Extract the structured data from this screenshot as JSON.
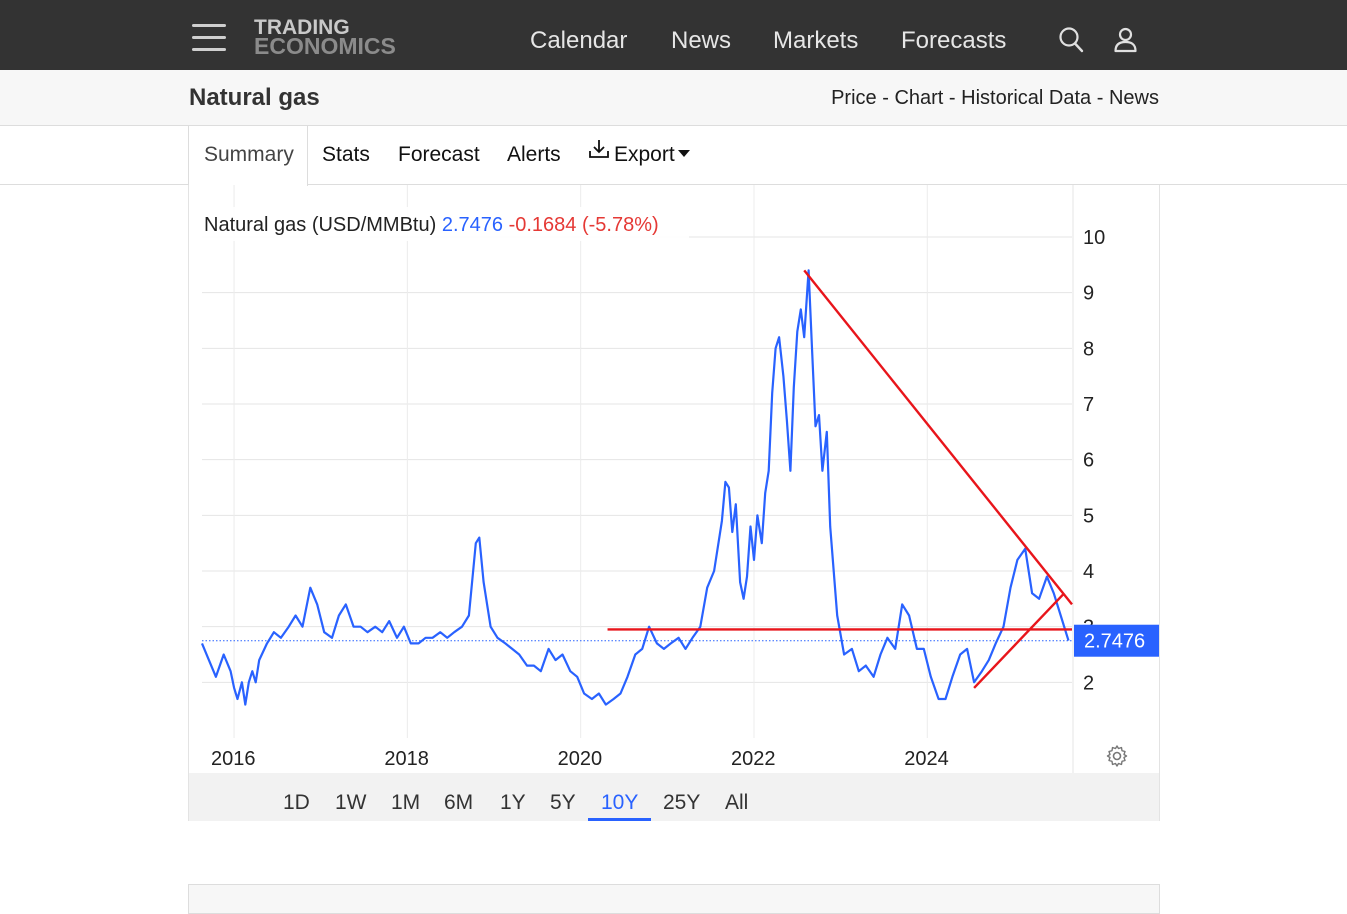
{
  "header": {
    "logo_line1": "TRADING",
    "logo_line2": "ECONOMICS",
    "nav": [
      "Calendar",
      "News",
      "Markets",
      "Forecasts"
    ],
    "icons": [
      "menu-icon",
      "search-icon",
      "user-icon"
    ]
  },
  "subheader": {
    "title": "Natural gas",
    "links": [
      "Price",
      "Chart",
      "Historical Data",
      "News"
    ],
    "separator": "-"
  },
  "tabs": {
    "items": [
      "Summary",
      "Stats",
      "Forecast",
      "Alerts",
      "Export"
    ],
    "active": "Summary",
    "export_icon": "download-icon"
  },
  "chart_data": {
    "type": "line",
    "title": "Natural gas (USD/MMBtu)",
    "last_value": "2.7476",
    "change": "-0.1684",
    "change_pct": "(-5.78%)",
    "price_tag": "2.7476",
    "xlabel": "",
    "ylabel": "",
    "x_ticks": [
      "2016",
      "2018",
      "2020",
      "2022",
      "2024"
    ],
    "y_ticks": [
      "2",
      "3",
      "4",
      "5",
      "6",
      "7",
      "8",
      "9",
      "10"
    ],
    "ylim": [
      1,
      10
    ],
    "grid": true,
    "y_axis_side": "right",
    "colors": {
      "line": "#2962ff",
      "trend": "#e8151b",
      "negative": "#e53935",
      "tag_bg": "#2962ff"
    },
    "series": [
      {
        "x": [
          2015.67,
          2015.75,
          2015.83,
          2015.92,
          2016.0,
          2016.04,
          2016.08,
          2016.13,
          2016.17,
          2016.21,
          2016.25,
          2016.29,
          2016.33,
          2016.42,
          2016.5,
          2016.58,
          2016.67,
          2016.75,
          2016.83,
          2016.92,
          2017.0,
          2017.08,
          2017.17,
          2017.25,
          2017.33,
          2017.42,
          2017.5,
          2017.58,
          2017.67,
          2017.75,
          2017.83,
          2017.92,
          2018.0,
          2018.08,
          2018.17,
          2018.25,
          2018.33,
          2018.42,
          2018.5,
          2018.58,
          2018.67,
          2018.75,
          2018.83,
          2018.87,
          2018.92,
          2018.96,
          2019.0,
          2019.08,
          2019.17,
          2019.25,
          2019.33,
          2019.42,
          2019.5,
          2019.58,
          2019.67,
          2019.75,
          2019.83,
          2019.92,
          2020.0,
          2020.08,
          2020.17,
          2020.25,
          2020.33,
          2020.42,
          2020.5,
          2020.58,
          2020.67,
          2020.75,
          2020.83,
          2020.92,
          2021.0,
          2021.08,
          2021.17,
          2021.25,
          2021.33,
          2021.42,
          2021.5,
          2021.58,
          2021.67,
          2021.71,
          2021.75,
          2021.79,
          2021.83,
          2021.88,
          2021.92,
          2021.96,
          2022.0,
          2022.04,
          2022.08,
          2022.13,
          2022.17,
          2022.21,
          2022.25,
          2022.29,
          2022.33,
          2022.38,
          2022.42,
          2022.46,
          2022.5,
          2022.54,
          2022.58,
          2022.62,
          2022.67,
          2022.71,
          2022.75,
          2022.79,
          2022.83,
          2022.88,
          2022.92,
          2022.96,
          2023.0,
          2023.08,
          2023.17,
          2023.25,
          2023.33,
          2023.42,
          2023.5,
          2023.58,
          2023.67,
          2023.75,
          2023.83,
          2023.92,
          2024.0,
          2024.08,
          2024.17,
          2024.25,
          2024.33,
          2024.42,
          2024.5,
          2024.58,
          2024.67,
          2024.75,
          2024.83,
          2024.92,
          2025.0,
          2025.08,
          2025.17,
          2025.25,
          2025.33,
          2025.42,
          2025.5,
          2025.58,
          2025.67
        ],
        "y": [
          2.7,
          2.4,
          2.1,
          2.5,
          2.2,
          1.9,
          1.7,
          2.0,
          1.6,
          2.0,
          2.2,
          2.0,
          2.4,
          2.7,
          2.9,
          2.8,
          3.0,
          3.2,
          3.0,
          3.7,
          3.4,
          2.9,
          2.8,
          3.2,
          3.4,
          3.0,
          3.0,
          2.9,
          3.0,
          2.9,
          3.1,
          2.8,
          3.0,
          2.7,
          2.7,
          2.8,
          2.8,
          2.9,
          2.8,
          2.9,
          3.0,
          3.2,
          4.5,
          4.6,
          3.8,
          3.4,
          3.0,
          2.8,
          2.7,
          2.6,
          2.5,
          2.3,
          2.3,
          2.2,
          2.6,
          2.4,
          2.5,
          2.2,
          2.1,
          1.8,
          1.7,
          1.8,
          1.6,
          1.7,
          1.8,
          2.1,
          2.5,
          2.6,
          3.0,
          2.7,
          2.6,
          2.7,
          2.8,
          2.6,
          2.8,
          3.0,
          3.7,
          4.0,
          4.9,
          5.6,
          5.5,
          4.7,
          5.2,
          3.8,
          3.5,
          3.9,
          4.8,
          4.2,
          5.0,
          4.5,
          5.4,
          5.8,
          7.2,
          8.0,
          8.2,
          7.5,
          6.7,
          5.8,
          7.3,
          8.3,
          8.7,
          8.2,
          9.4,
          8.0,
          6.6,
          6.8,
          5.8,
          6.5,
          4.8,
          4.0,
          3.2,
          2.5,
          2.6,
          2.2,
          2.3,
          2.1,
          2.5,
          2.8,
          2.6,
          3.4,
          3.2,
          2.6,
          2.6,
          2.1,
          1.7,
          1.7,
          2.1,
          2.5,
          2.6,
          2.0,
          2.2,
          2.4,
          2.7,
          3.0,
          3.7,
          4.2,
          4.4,
          3.6,
          3.5,
          3.9,
          3.6,
          3.2,
          2.75
        ]
      }
    ],
    "trendlines": [
      {
        "x": [
          2022.62,
          2025.71
        ],
        "y": [
          9.4,
          3.4
        ]
      },
      {
        "x": [
          2020.35,
          2025.71
        ],
        "y": [
          2.95,
          2.95
        ]
      },
      {
        "x": [
          2024.58,
          2025.62
        ],
        "y": [
          1.9,
          3.6
        ]
      }
    ],
    "current_level": 2.7476
  },
  "chart_ui": {
    "settings_icon": "gear-icon"
  },
  "range_selector": {
    "options": [
      "1D",
      "1W",
      "1M",
      "6M",
      "1Y",
      "5Y",
      "10Y",
      "25Y",
      "All"
    ],
    "active": "10Y"
  }
}
